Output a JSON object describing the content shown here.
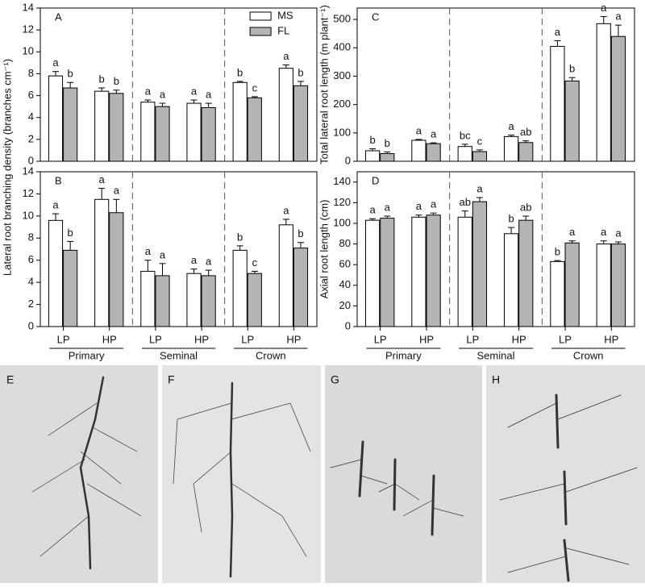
{
  "chart_data": [
    {
      "type": "bar",
      "panel": "A",
      "ylabel": "Lateral root branching density (branches cm⁻¹)",
      "ylim": [
        0,
        14
      ],
      "yticks": [
        0,
        2,
        4,
        6,
        8,
        10,
        12,
        14
      ],
      "legend": "top-right",
      "series": [
        {
          "name": "MS",
          "color": "#ffffff",
          "values": [
            7.8,
            6.4,
            5.4,
            5.3,
            7.2,
            8.5
          ],
          "errors": [
            0.4,
            0.3,
            0.2,
            0.3,
            0.1,
            0.3
          ],
          "letters": [
            "a",
            "b",
            "a",
            "a",
            "b",
            "a"
          ]
        },
        {
          "name": "FL",
          "color": "#b4b4b4",
          "values": [
            6.7,
            6.2,
            5.0,
            4.9,
            5.8,
            6.9
          ],
          "errors": [
            0.5,
            0.3,
            0.3,
            0.4,
            0.1,
            0.4
          ],
          "letters": [
            "b",
            "b",
            "a",
            "a",
            "c",
            "b"
          ]
        }
      ]
    },
    {
      "type": "bar",
      "panel": "B",
      "ylim": [
        0,
        14
      ],
      "yticks": [
        0,
        2,
        4,
        6,
        8,
        10,
        12,
        14
      ],
      "categories": [
        "LP",
        "HP",
        "LP",
        "HP",
        "LP",
        "HP"
      ],
      "groups": [
        "Primary",
        "Seminal",
        "Crown"
      ],
      "series": [
        {
          "color": "#ffffff",
          "values": [
            9.6,
            11.5,
            5.0,
            4.8,
            6.9,
            9.2
          ],
          "errors": [
            0.6,
            1.0,
            1.0,
            0.4,
            0.4,
            0.5
          ],
          "letters": [
            "a",
            "a",
            "a",
            "a",
            "b",
            "a"
          ]
        },
        {
          "color": "#b4b4b4",
          "values": [
            6.9,
            10.3,
            4.6,
            4.6,
            4.8,
            7.1
          ],
          "errors": [
            0.8,
            1.2,
            1.1,
            0.5,
            0.2,
            0.5
          ],
          "letters": [
            "b",
            "a",
            "a",
            "a",
            "c",
            "b"
          ]
        }
      ]
    },
    {
      "type": "bar",
      "panel": "C",
      "ylabel": "Total lateral root length (m plant⁻¹)",
      "ylim": [
        0,
        540
      ],
      "yticks": [
        0,
        100,
        200,
        300,
        400,
        500
      ],
      "series": [
        {
          "color": "#ffffff",
          "values": [
            37,
            74,
            52,
            87,
            405,
            485
          ],
          "errors": [
            7,
            3,
            8,
            5,
            20,
            25
          ],
          "letters": [
            "b",
            "a",
            "bc",
            "a",
            "a",
            "a"
          ]
        },
        {
          "color": "#b4b4b4",
          "values": [
            27,
            62,
            34,
            66,
            283,
            440
          ],
          "errors": [
            6,
            3,
            6,
            6,
            12,
            40
          ],
          "letters": [
            "b",
            "a",
            "c",
            "ab",
            "b",
            "a"
          ]
        }
      ]
    },
    {
      "type": "bar",
      "panel": "D",
      "ylabel": "Axial root length (cm)",
      "ylim": [
        0,
        150
      ],
      "yticks": [
        0,
        20,
        40,
        60,
        80,
        100,
        120,
        140
      ],
      "categories": [
        "LP",
        "HP",
        "LP",
        "HP",
        "LP",
        "HP"
      ],
      "groups": [
        "Primary",
        "Seminal",
        "Crown"
      ],
      "series": [
        {
          "color": "#ffffff",
          "values": [
            103,
            106,
            106,
            90,
            63,
            80
          ],
          "errors": [
            1.5,
            2,
            6,
            6,
            1,
            3
          ],
          "letters": [
            "a",
            "a",
            "ab",
            "b",
            "b",
            "a"
          ]
        },
        {
          "color": "#b4b4b4",
          "values": [
            105,
            108,
            121,
            103,
            81,
            80
          ],
          "errors": [
            2,
            2,
            4,
            4,
            2,
            2
          ],
          "letters": [
            "a",
            "a",
            "a",
            "ab",
            "a",
            "a"
          ]
        }
      ]
    }
  ],
  "photo_panels": [
    "E",
    "F",
    "G",
    "H"
  ]
}
